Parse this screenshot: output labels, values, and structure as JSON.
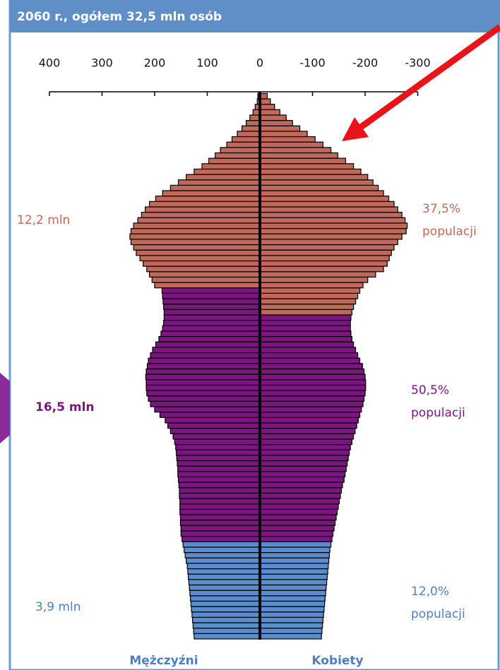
{
  "chart_data": {
    "type": "pyramid",
    "title": "2060 r., ogółem 32,5 mln osób",
    "xlim": [
      400,
      -300
    ],
    "xticks": [
      400,
      300,
      200,
      100,
      0,
      -100,
      -200,
      -300
    ],
    "group_labels": [
      "Mężczyźni",
      "Kobiety"
    ],
    "annotations": [
      "12,2 mln",
      "37,5%",
      "populacji",
      "16,5 mln",
      "50,5%",
      "populacji",
      "3,9 mln",
      "12,0%",
      "populacji"
    ],
    "series": [
      {
        "color": "#5b8ccc",
        "values": [
          125,
          126,
          127,
          128,
          129,
          130,
          131,
          132,
          133,
          134,
          135,
          136,
          137,
          138,
          140,
          142,
          144,
          146
        ]
      },
      {
        "color": "#7b1680",
        "values": [
          148,
          150,
          150,
          151,
          151,
          152,
          152,
          152,
          153,
          153,
          154,
          155,
          156,
          156,
          157,
          158,
          159,
          160,
          162,
          165,
          170,
          175,
          180,
          190,
          200,
          208,
          212,
          215,
          216,
          216,
          217,
          216,
          214,
          212,
          208,
          204,
          198,
          192,
          188,
          185,
          183,
          182,
          182,
          183,
          184,
          185,
          186
        ]
      },
      {
        "color": "#c0685a",
        "values": [
          200,
          205,
          210,
          215,
          222,
          228,
          235,
          240,
          245,
          247,
          245,
          240,
          232,
          225,
          218,
          210,
          198,
          185,
          170,
          155,
          140,
          125,
          110,
          97,
          85,
          75,
          63,
          53,
          43,
          34,
          26,
          19,
          13,
          9,
          5,
          4
        ]
      },
      {
        "color": "#5b8ccc",
        "values": [
          -117,
          -118,
          -119,
          -120,
          -121,
          -122,
          -123,
          -124,
          -125,
          -126,
          -127,
          -128,
          -129,
          -130,
          -131,
          -132,
          -133,
          -135
        ]
      },
      {
        "color": "#7b1680",
        "values": [
          -137,
          -139,
          -141,
          -143,
          -145,
          -147,
          -149,
          -151,
          -153,
          -155,
          -157,
          -160,
          -162,
          -164,
          -166,
          -168,
          -170,
          -172,
          -175,
          -178,
          -181,
          -184,
          -187,
          -190,
          -193,
          -196,
          -198,
          -200,
          -201,
          -201,
          -200,
          -198,
          -195,
          -190,
          -186,
          -182,
          -178,
          -175,
          -173,
          -172,
          -172,
          -173
        ]
      },
      {
        "color": "#c0685a",
        "values": [
          -175,
          -178,
          -182,
          -186,
          -190,
          -196,
          -205,
          -220,
          -235,
          -242,
          -246,
          -250,
          -255,
          -262,
          -270,
          -278,
          -280,
          -276,
          -270,
          -262,
          -255,
          -245,
          -235,
          -225,
          -215,
          -205,
          -192,
          -178,
          -163,
          -148,
          -135,
          -120,
          -105,
          -90,
          -76,
          -62,
          -50,
          -38,
          -28,
          -20,
          -14
        ]
      }
    ]
  }
}
